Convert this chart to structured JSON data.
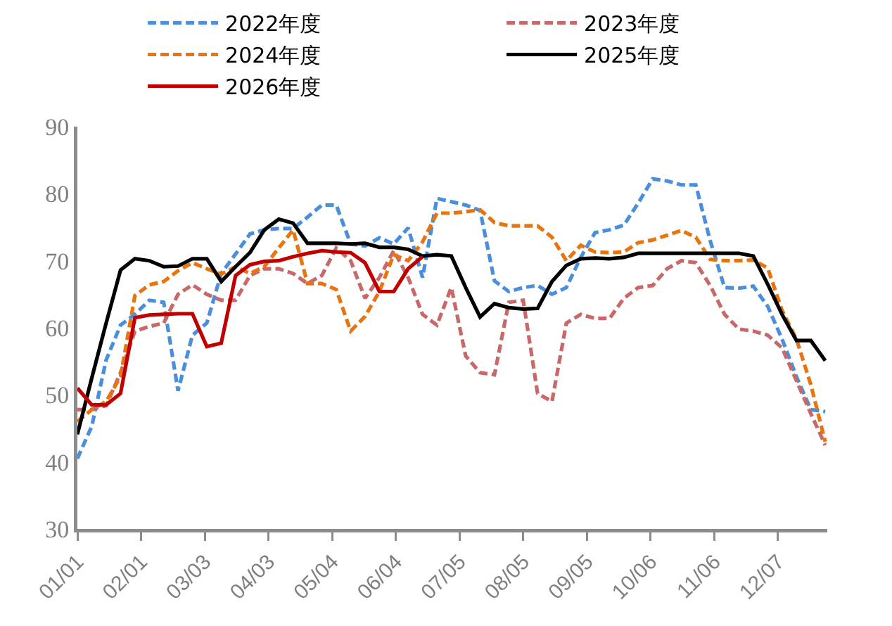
{
  "chart_data": {
    "type": "line",
    "legend": "top",
    "grid": false,
    "x": [
      "--01-01",
      "--01-08",
      "--01-15",
      "--01-22",
      "--01-29",
      "--02-05",
      "--02-12",
      "--02-19",
      "--02-26",
      "--03-04",
      "--03-11",
      "--03-18",
      "--03-25",
      "--04-01",
      "--04-08",
      "--04-15",
      "--04-22",
      "--04-29",
      "--05-06",
      "--05-13",
      "--05-20",
      "--05-27",
      "--06-03",
      "--06-10",
      "--06-17",
      "--06-24",
      "--07-01",
      "--07-08",
      "--07-15",
      "--07-22",
      "--07-29",
      "--08-05",
      "--08-12",
      "--08-19",
      "--08-26",
      "--09-02",
      "--09-09",
      "--09-16",
      "--09-23",
      "--09-30",
      "--10-07",
      "--10-14",
      "--10-21",
      "--10-28",
      "--11-04",
      "--11-11",
      "--11-18",
      "--11-25",
      "--12-02",
      "--12-09",
      "--12-16",
      "--12-23",
      "--12-30"
    ],
    "xlim": [
      "--01-01",
      "--12-31"
    ],
    "xticks": [
      {
        "value": "--01-01",
        "label": "01/01"
      },
      {
        "value": "--02-01",
        "label": "02/01"
      },
      {
        "value": "--03-03",
        "label": "03/03"
      },
      {
        "value": "--04-03",
        "label": "04/03"
      },
      {
        "value": "--05-04",
        "label": "05/04"
      },
      {
        "value": "--06-04",
        "label": "06/04"
      },
      {
        "value": "--07-05",
        "label": "07/05"
      },
      {
        "value": "--08-05",
        "label": "08/05"
      },
      {
        "value": "--09-05",
        "label": "09/05"
      },
      {
        "value": "--10-06",
        "label": "10/06"
      },
      {
        "value": "--11-06",
        "label": "11/06"
      },
      {
        "value": "--12-07",
        "label": "12/07"
      }
    ],
    "ylim": [
      30,
      90
    ],
    "yticks": [
      30,
      40,
      50,
      60,
      70,
      80,
      90
    ],
    "series": [
      {
        "name": "2022年度",
        "color": "#4a8fdb",
        "line_style": "dashed",
        "values": [
          40.5,
          45.3,
          55.2,
          60.4,
          62,
          64.1,
          63.8,
          50.6,
          58.9,
          60.7,
          68.1,
          71,
          74,
          74.6,
          74.8,
          74.8,
          76.5,
          78.3,
          78.3,
          72.5,
          72.2,
          73.4,
          72.5,
          74.9,
          67.5,
          79.3,
          78.8,
          78.3,
          77.5,
          67,
          65.4,
          66,
          66.3,
          65,
          66,
          70.5,
          74.2,
          74.6,
          75.3,
          78.6,
          82.2,
          81.9,
          81.3,
          81.3,
          73,
          66,
          65.9,
          66.2,
          63.2,
          58.3,
          52.7,
          47.8,
          47.5
        ]
      },
      {
        "name": "2023年度",
        "color": "#c96868",
        "line_style": "dashed",
        "values": [
          47.8,
          47.8,
          48.4,
          53.3,
          59.5,
          60.2,
          60.7,
          65,
          66.4,
          65,
          64.1,
          64.1,
          67.8,
          68.8,
          68.8,
          68.1,
          66.6,
          67.8,
          71.9,
          70,
          64.4,
          67.5,
          71.5,
          67.5,
          62,
          60.4,
          66,
          55.8,
          53.3,
          53,
          63.8,
          64.1,
          50.2,
          49,
          60.7,
          62,
          61.4,
          61.4,
          64.4,
          66,
          66.3,
          68.8,
          70,
          69.7,
          66.3,
          62,
          59.8,
          59.5,
          58.9,
          57,
          52.1,
          47.2,
          42.5
        ]
      },
      {
        "name": "2024年度",
        "color": "#e8740f",
        "line_style": "dashed",
        "values": [
          46,
          47.8,
          49,
          52.7,
          64.8,
          66.4,
          66.9,
          68.5,
          69.7,
          68.8,
          68,
          69.1,
          68.1,
          69.1,
          71.9,
          74.6,
          66.6,
          66.6,
          65.7,
          59.5,
          61.7,
          65.4,
          70.9,
          70,
          72.8,
          77.1,
          77.1,
          77.3,
          77.6,
          75.7,
          75.2,
          75.2,
          75.2,
          73.5,
          70,
          72.3,
          71.3,
          71.2,
          71.3,
          72.7,
          73.1,
          73.8,
          74.5,
          73.5,
          70.2,
          70,
          70,
          70.1,
          68.9,
          62.6,
          58.3,
          51.5,
          43
        ]
      },
      {
        "name": "2025年度",
        "color": "#000000",
        "line_style": "solid",
        "values": [
          44.1,
          52.5,
          60.7,
          68.6,
          70.3,
          70,
          69.1,
          69.2,
          70.3,
          70.3,
          66.9,
          69.1,
          71.2,
          74.6,
          76.2,
          75.6,
          72.6,
          72.6,
          72.6,
          72.5,
          72.6,
          72,
          72,
          71.7,
          70.7,
          70.9,
          70.7,
          66,
          61.6,
          63.6,
          63,
          62.8,
          62.9,
          66.9,
          69.3,
          70.3,
          70.4,
          70.3,
          70.5,
          71.1,
          71.1,
          71.1,
          71.1,
          71.1,
          71.1,
          71.1,
          71.1,
          70.7,
          66.5,
          62,
          58.1,
          58.1,
          55.1
        ]
      },
      {
        "name": "2026年度",
        "color": "#c00000",
        "line_style": "solid",
        "values": [
          51,
          48.5,
          48.5,
          50.2,
          61.5,
          61.9,
          62,
          62.1,
          62.1,
          57.2,
          57.7,
          67.8,
          69.4,
          69.9,
          70,
          70.6,
          71.1,
          71.5,
          71.3,
          71.2,
          69.7,
          65.4,
          65.4,
          68.8,
          70.6,
          null,
          null,
          null,
          null,
          null,
          null,
          null,
          null,
          null,
          null,
          null,
          null,
          null,
          null,
          null,
          null,
          null,
          null,
          null,
          null,
          null,
          null,
          null,
          null,
          null,
          null,
          null,
          null
        ]
      }
    ]
  }
}
